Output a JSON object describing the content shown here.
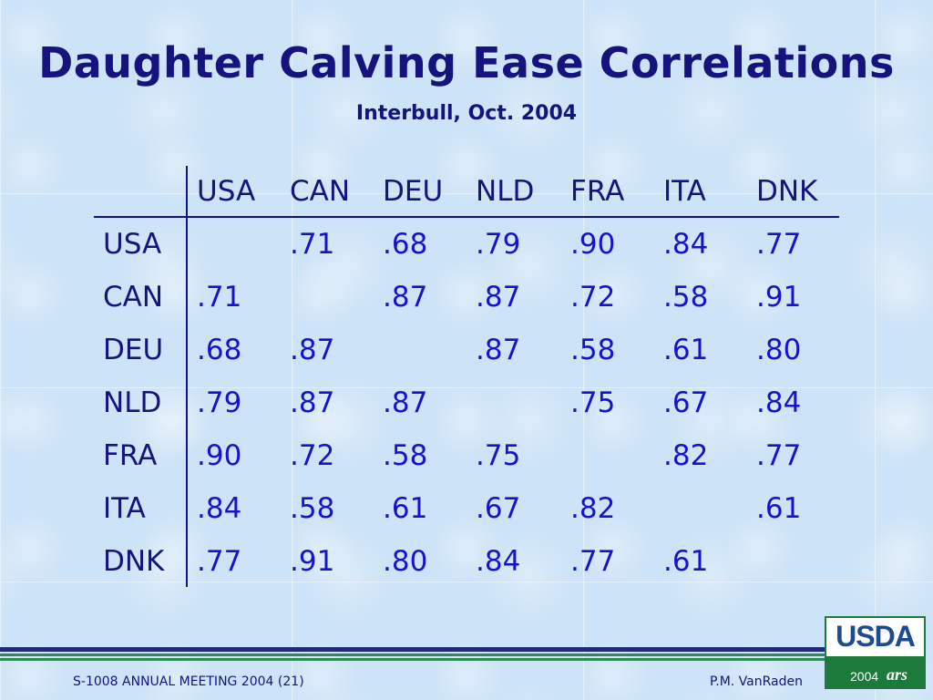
{
  "slide": {
    "title": "Daughter Calving Ease Correlations",
    "subtitle": "Interbull, Oct. 2004"
  },
  "table": {
    "columns": [
      "USA",
      "CAN",
      "DEU",
      "NLD",
      "FRA",
      "ITA",
      "DNK"
    ],
    "rows": [
      {
        "label": "USA",
        "values": [
          "",
          ".71",
          ".68",
          ".79",
          ".90",
          ".84",
          ".77"
        ]
      },
      {
        "label": "CAN",
        "values": [
          ".71",
          "",
          ".87",
          ".87",
          ".72",
          ".58",
          ".91"
        ]
      },
      {
        "label": "DEU",
        "values": [
          ".68",
          ".87",
          "",
          ".87",
          ".58",
          ".61",
          ".80"
        ]
      },
      {
        "label": "NLD",
        "values": [
          ".79",
          ".87",
          ".87",
          "",
          ".75",
          ".67",
          ".84"
        ]
      },
      {
        "label": "FRA",
        "values": [
          ".90",
          ".72",
          ".58",
          ".75",
          "",
          ".82",
          ".77"
        ]
      },
      {
        "label": "ITA",
        "values": [
          ".84",
          ".58",
          ".61",
          ".67",
          ".82",
          "",
          ".61"
        ]
      },
      {
        "label": "DNK",
        "values": [
          ".77",
          ".91",
          ".80",
          ".84",
          ".77",
          ".61",
          ""
        ]
      }
    ]
  },
  "footer": {
    "left": "S-1008 ANNUAL MEETING 2004 (21)",
    "right": "P.M. VanRaden"
  },
  "logo": {
    "text": "USDA",
    "year": "2004",
    "mark": "ars"
  },
  "colors": {
    "title": "#16137e",
    "values": "#1414cc",
    "stripe_blue": "#1e2a7a",
    "stripe_green": "#2e8b57"
  }
}
